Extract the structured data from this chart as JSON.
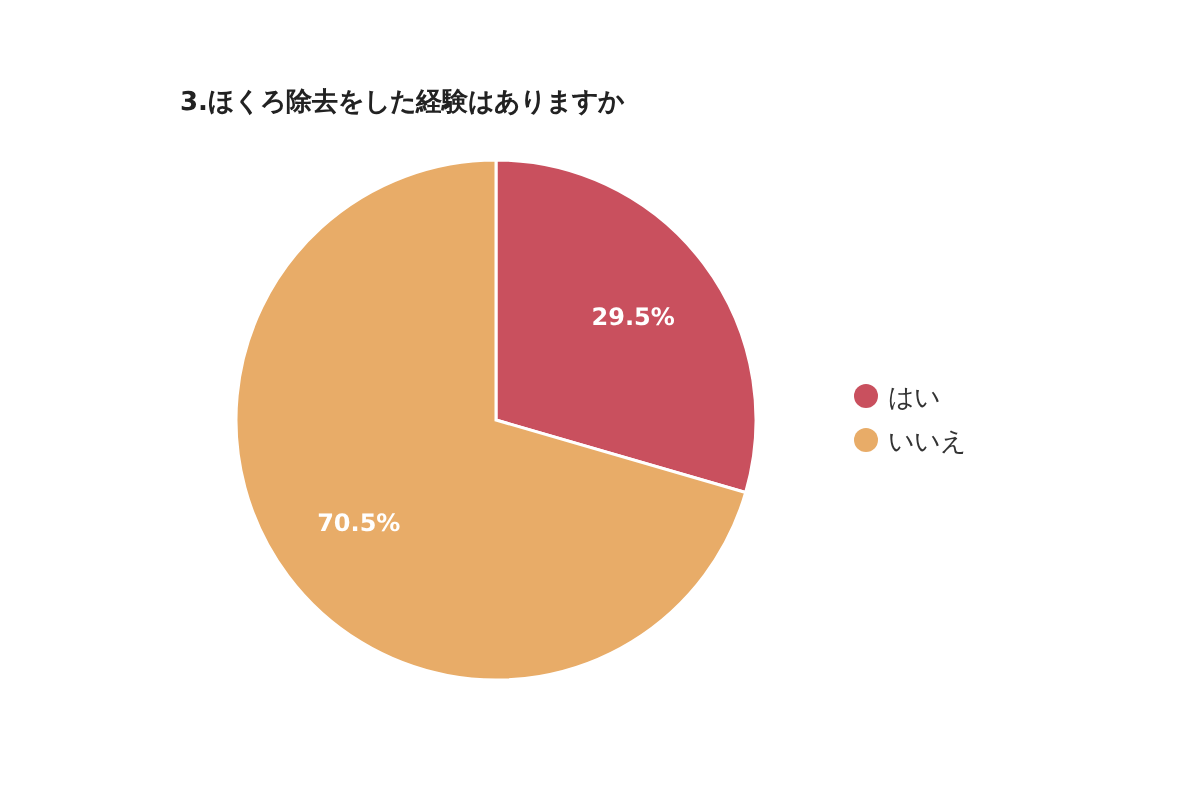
{
  "chart_data": {
    "type": "pie",
    "title": "3.ほくろ除去をした経験はありますか",
    "categories": [
      "はい",
      "いいえ"
    ],
    "values": [
      29.5,
      70.5
    ],
    "colors": [
      "#c9505e",
      "#e8ac68"
    ],
    "value_labels": [
      "29.5%",
      "70.5%"
    ],
    "legend": "right"
  }
}
